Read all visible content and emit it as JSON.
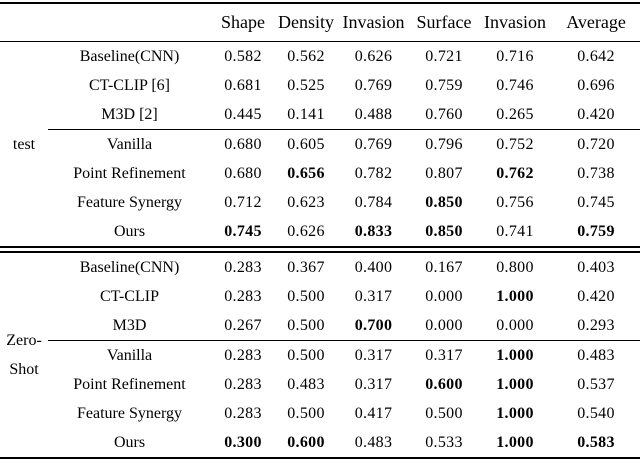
{
  "colors": {
    "text": "#000000",
    "background": "#ffffff",
    "rule": "#000000"
  },
  "table": {
    "header_columns": [
      "Shape",
      "Density",
      "Invasion",
      "Surface",
      "Invasion",
      "Average"
    ],
    "sections": [
      {
        "group_lines": [
          "test"
        ],
        "rows": [
          {
            "method": "Baseline(CNN)",
            "values": [
              "0.582",
              "0.562",
              "0.626",
              "0.721",
              "0.716",
              "0.642"
            ],
            "bold": [
              0,
              0,
              0,
              0,
              0,
              0
            ],
            "rule_above": false
          },
          {
            "method": "CT-CLIP [6]",
            "values": [
              "0.681",
              "0.525",
              "0.769",
              "0.759",
              "0.746",
              "0.696"
            ],
            "bold": [
              0,
              0,
              0,
              0,
              0,
              0
            ],
            "rule_above": false
          },
          {
            "method": "M3D [2]",
            "values": [
              "0.445",
              "0.141",
              "0.488",
              "0.760",
              "0.265",
              "0.420"
            ],
            "bold": [
              0,
              0,
              0,
              0,
              0,
              0
            ],
            "rule_above": false
          },
          {
            "method": "Vanilla",
            "values": [
              "0.680",
              "0.605",
              "0.769",
              "0.796",
              "0.752",
              "0.720"
            ],
            "bold": [
              0,
              0,
              0,
              0,
              0,
              0
            ],
            "rule_above": true
          },
          {
            "method": "Point Refinement",
            "values": [
              "0.680",
              "0.656",
              "0.782",
              "0.807",
              "0.762",
              "0.738"
            ],
            "bold": [
              0,
              1,
              0,
              0,
              1,
              0
            ],
            "rule_above": false
          },
          {
            "method": "Feature Synergy",
            "values": [
              "0.712",
              "0.623",
              "0.784",
              "0.850",
              "0.756",
              "0.745"
            ],
            "bold": [
              0,
              0,
              0,
              1,
              0,
              0
            ],
            "rule_above": false
          },
          {
            "method": "Ours",
            "values": [
              "0.745",
              "0.626",
              "0.833",
              "0.850",
              "0.741",
              "0.759"
            ],
            "bold": [
              1,
              0,
              1,
              1,
              0,
              1
            ],
            "rule_above": false
          }
        ]
      },
      {
        "group_lines": [
          "Zero-",
          "Shot"
        ],
        "rows": [
          {
            "method": "Baseline(CNN)",
            "values": [
              "0.283",
              "0.367",
              "0.400",
              "0.167",
              "0.800",
              "0.403"
            ],
            "bold": [
              0,
              0,
              0,
              0,
              0,
              0
            ],
            "rule_above": false
          },
          {
            "method": "CT-CLIP",
            "values": [
              "0.283",
              "0.500",
              "0.317",
              "0.000",
              "1.000",
              "0.420"
            ],
            "bold": [
              0,
              0,
              0,
              0,
              1,
              0
            ],
            "rule_above": false
          },
          {
            "method": "M3D",
            "values": [
              "0.267",
              "0.500",
              "0.700",
              "0.000",
              "0.000",
              "0.293"
            ],
            "bold": [
              0,
              0,
              1,
              0,
              0,
              0
            ],
            "rule_above": false
          },
          {
            "method": "Vanilla",
            "values": [
              "0.283",
              "0.500",
              "0.317",
              "0.317",
              "1.000",
              "0.483"
            ],
            "bold": [
              0,
              0,
              0,
              0,
              1,
              0
            ],
            "rule_above": true
          },
          {
            "method": "Point Refinement",
            "values": [
              "0.283",
              "0.483",
              "0.317",
              "0.600",
              "1.000",
              "0.537"
            ],
            "bold": [
              0,
              0,
              0,
              1,
              1,
              0
            ],
            "rule_above": false
          },
          {
            "method": "Feature Synergy",
            "values": [
              "0.283",
              "0.500",
              "0.417",
              "0.500",
              "1.000",
              "0.540"
            ],
            "bold": [
              0,
              0,
              0,
              0,
              1,
              0
            ],
            "rule_above": false
          },
          {
            "method": "Ours",
            "values": [
              "0.300",
              "0.600",
              "0.483",
              "0.533",
              "1.000",
              "0.583"
            ],
            "bold": [
              1,
              1,
              0,
              0,
              1,
              1
            ],
            "rule_above": false
          }
        ]
      }
    ]
  }
}
